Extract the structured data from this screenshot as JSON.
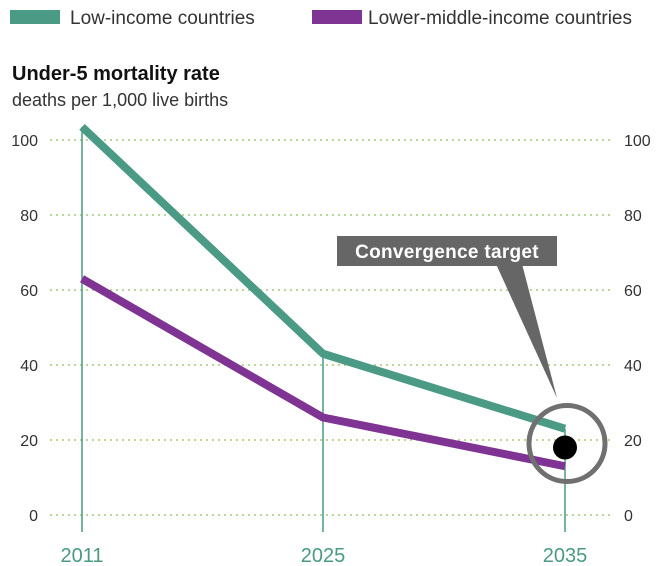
{
  "chart_data": {
    "type": "line",
    "title": "Under-5 mortality rate",
    "subtitle": "deaths per 1,000 live births",
    "x": [
      "2011",
      "2025",
      "2035"
    ],
    "series": [
      {
        "name": "Low-income countries",
        "values": [
          103.5,
          43,
          23
        ],
        "color": "#4a9a86"
      },
      {
        "name": "Lower-middle-income countries",
        "values": [
          63,
          26,
          13
        ],
        "color": "#7f3393"
      }
    ],
    "ylim": [
      0,
      100
    ],
    "yticks": [
      0,
      20,
      40,
      60,
      80,
      100
    ],
    "grid": true,
    "legend_position": "top",
    "annotation": {
      "text": "Convergence target",
      "x": "2035",
      "y": 18
    }
  }
}
